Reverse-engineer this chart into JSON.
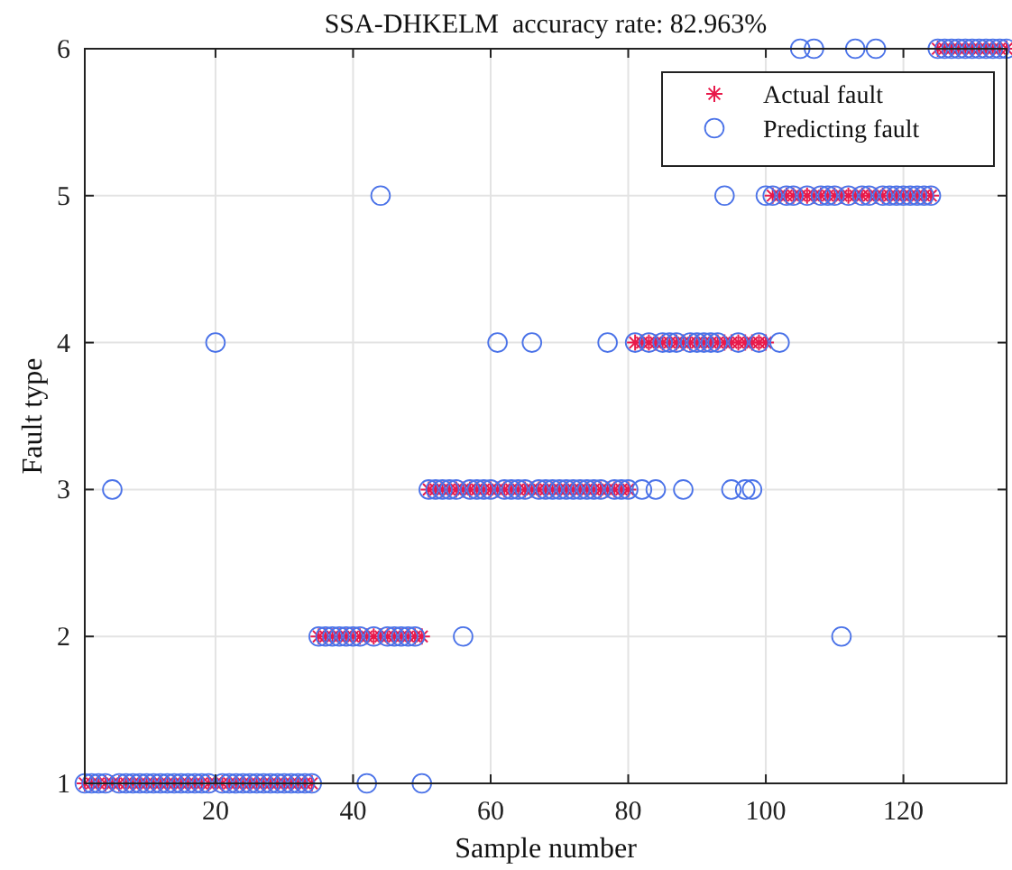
{
  "chart_data": {
    "type": "scatter",
    "title": "SSA-DHKELM  accuracy rate: 82.963%",
    "xlabel": "Sample number",
    "ylabel": "Fault type",
    "x": [
      1,
      2,
      3,
      4,
      5,
      6,
      7,
      8,
      9,
      10,
      11,
      12,
      13,
      14,
      15,
      16,
      17,
      18,
      19,
      20,
      21,
      22,
      23,
      24,
      25,
      26,
      27,
      28,
      29,
      30,
      31,
      32,
      33,
      34,
      35,
      36,
      37,
      38,
      39,
      40,
      41,
      42,
      43,
      44,
      45,
      46,
      47,
      48,
      49,
      50,
      51,
      52,
      53,
      54,
      55,
      56,
      57,
      58,
      59,
      60,
      61,
      62,
      63,
      64,
      65,
      66,
      67,
      68,
      69,
      70,
      71,
      72,
      73,
      74,
      75,
      76,
      77,
      78,
      79,
      80,
      81,
      82,
      83,
      84,
      85,
      86,
      87,
      88,
      89,
      90,
      91,
      92,
      93,
      94,
      95,
      96,
      97,
      98,
      99,
      100,
      101,
      102,
      103,
      104,
      105,
      106,
      107,
      108,
      109,
      110,
      111,
      112,
      113,
      114,
      115,
      116,
      117,
      118,
      119,
      120,
      121,
      122,
      123,
      124,
      125,
      126,
      127,
      128,
      129,
      130,
      131,
      132,
      133,
      134,
      135
    ],
    "series": [
      {
        "name": "Actual fault",
        "color": "#e8194a",
        "marker": "cross",
        "values": [
          1,
          1,
          1,
          1,
          1,
          1,
          1,
          1,
          1,
          1,
          1,
          1,
          1,
          1,
          1,
          1,
          1,
          1,
          1,
          1,
          1,
          1,
          1,
          1,
          1,
          1,
          1,
          1,
          1,
          1,
          1,
          1,
          1,
          1,
          2,
          2,
          2,
          2,
          2,
          2,
          2,
          2,
          2,
          2,
          2,
          2,
          2,
          2,
          2,
          2,
          3,
          3,
          3,
          3,
          3,
          3,
          3,
          3,
          3,
          3,
          3,
          3,
          3,
          3,
          3,
          3,
          3,
          3,
          3,
          3,
          3,
          3,
          3,
          3,
          3,
          3,
          3,
          3,
          3,
          3,
          4,
          4,
          4,
          4,
          4,
          4,
          4,
          4,
          4,
          4,
          4,
          4,
          4,
          4,
          4,
          4,
          4,
          4,
          4,
          4,
          5,
          5,
          5,
          5,
          5,
          5,
          5,
          5,
          5,
          5,
          5,
          5,
          5,
          5,
          5,
          5,
          5,
          5,
          5,
          5,
          5,
          5,
          5,
          5,
          6,
          6,
          6,
          6,
          6,
          6,
          6,
          6,
          6,
          6,
          6
        ]
      },
      {
        "name": "Predicting fault",
        "color": "#4a72e8",
        "marker": "circle",
        "values": [
          1,
          1,
          1,
          1,
          3,
          1,
          1,
          1,
          1,
          1,
          1,
          1,
          1,
          1,
          1,
          1,
          1,
          1,
          1,
          4,
          1,
          1,
          1,
          1,
          1,
          1,
          1,
          1,
          1,
          1,
          1,
          1,
          1,
          1,
          2,
          2,
          2,
          2,
          2,
          2,
          2,
          1,
          2,
          5,
          2,
          2,
          2,
          2,
          2,
          1,
          3,
          3,
          3,
          3,
          3,
          2,
          3,
          3,
          3,
          3,
          4,
          3,
          3,
          3,
          3,
          4,
          3,
          3,
          3,
          3,
          3,
          3,
          3,
          3,
          3,
          3,
          4,
          3,
          3,
          3,
          4,
          3,
          4,
          3,
          4,
          4,
          4,
          3,
          4,
          4,
          4,
          4,
          4,
          5,
          3,
          4,
          3,
          3,
          4,
          5,
          5,
          4,
          5,
          5,
          6,
          5,
          6,
          5,
          5,
          5,
          2,
          5,
          6,
          5,
          5,
          6,
          5,
          5,
          5,
          5,
          5,
          5,
          5,
          5,
          6,
          6,
          6,
          6,
          6,
          6,
          6,
          6,
          6,
          6,
          6
        ]
      }
    ],
    "xlim": [
      1,
      135
    ],
    "xticks": [
      20,
      40,
      60,
      80,
      100,
      120
    ],
    "ylim": [
      1,
      6
    ],
    "yticks": [
      1,
      2,
      3,
      4,
      5,
      6
    ],
    "grid": true,
    "legend": "top right"
  }
}
